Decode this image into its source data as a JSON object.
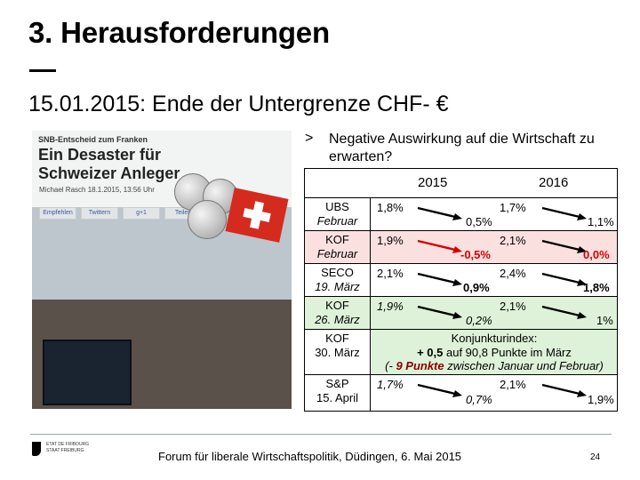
{
  "slide": {
    "title": "3. Herausforderungen",
    "subtitle": "15.01.2015: Ende der Untergrenze CHF- €",
    "bullet_marker": ">",
    "bullet_text": "Negative Auswirkung auf die Wirtschaft zu erwarten?"
  },
  "photo": {
    "brand": "SNB-Entscheid zum Franken",
    "headline": "Ein Desaster für Schweizer Anleger",
    "byline": "Michael Rasch   18.1.2015, 13:56 Uhr",
    "share_buttons": [
      "Empfehlen",
      "Twittern",
      "g+1",
      "Teilen"
    ]
  },
  "table": {
    "years": [
      "2015",
      "2016"
    ],
    "rows": [
      {
        "label1": "UBS",
        "label2": "Februar",
        "v2015a": "1,8%",
        "v2015b": "0,5%",
        "v2016a": "1,7%",
        "v2016b": "1,1%"
      },
      {
        "label1": "KOF",
        "label2": "Februar",
        "v2015a": "1,9%",
        "v2015b": "-0,5%",
        "v2016a": "2,1%",
        "v2016b": "0,0%"
      },
      {
        "label1": "SECO",
        "label2": "19. März",
        "v2015a": "2,1%",
        "v2015b": "0,9%",
        "v2016a": "2,4%",
        "v2016b": "1,8%"
      },
      {
        "label1": "KOF",
        "label2": "26. März",
        "v2015a": "1,9%",
        "v2015b": "0,2%",
        "v2016a": "2,1%",
        "v2016b": "1%"
      },
      {
        "label1": "KOF",
        "label2": "30. März",
        "konj_line1": "Konjunkturindex:",
        "konj_line2_bold": "+ 0,5",
        "konj_line2_rest": " auf 90,8 Punkte im März",
        "konj_line3_start": "(- ",
        "konj_line3_bold": "9 Punkte",
        "konj_line3_rest": " zwischen Januar und Februar)"
      },
      {
        "label1": "S&P",
        "label2": "15. April",
        "v2015a": "1,7%",
        "v2015b": "0,7%",
        "v2016a": "2,1%",
        "v2016b": "1,9%"
      }
    ]
  },
  "footer": {
    "logo_text": "ETAT DE FRIBOURG\nSTAAT FREIBURG",
    "text": "Forum für liberale Wirtschaftspolitik, Düdingen, 6. Mai 2015",
    "page_number": "24"
  },
  "colors": {
    "highlight_pink": "#fbe0e0",
    "highlight_green": "#ddf2d8",
    "negative_red": "#d40000"
  }
}
